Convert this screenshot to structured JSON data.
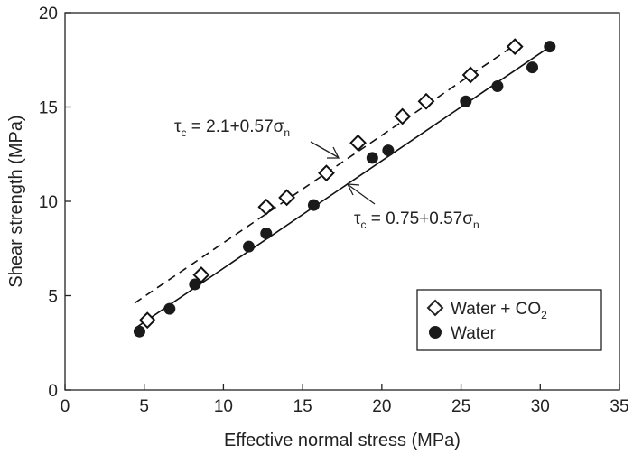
{
  "chart_data": {
    "type": "scatter",
    "title": "",
    "xlabel": "Effective normal stress (MPa)",
    "ylabel": "Shear strength (MPa)",
    "xlim": [
      0,
      35
    ],
    "ylim": [
      0,
      20
    ],
    "xticks": [
      "0",
      "5",
      "10",
      "15",
      "20",
      "25",
      "30",
      "35"
    ],
    "yticks": [
      "0",
      "5",
      "10",
      "15",
      "20"
    ],
    "grid": false,
    "legend_position": "bottom-right",
    "series": [
      {
        "name_prefix": "Water + CO",
        "name_subscript": "2",
        "marker": "open-diamond",
        "color": "#000000",
        "x": [
          5.2,
          8.6,
          12.7,
          14.0,
          16.5,
          18.5,
          21.3,
          22.8,
          25.6,
          28.4
        ],
        "y": [
          3.7,
          6.1,
          9.7,
          10.2,
          11.5,
          13.1,
          14.5,
          15.3,
          16.7,
          18.2
        ]
      },
      {
        "name": "Water",
        "marker": "filled-circle",
        "color": "#000000",
        "x": [
          4.7,
          6.6,
          8.2,
          11.6,
          12.7,
          15.7,
          19.4,
          20.4,
          25.3,
          27.3,
          29.5,
          30.6
        ],
        "y": [
          3.1,
          4.3,
          5.6,
          7.6,
          8.3,
          9.8,
          12.3,
          12.7,
          15.3,
          16.1,
          17.1,
          18.2
        ]
      }
    ],
    "fit_lines": [
      {
        "series": "Water + CO2",
        "style": "dashed",
        "intercept": 2.1,
        "slope": 0.57,
        "x_range": [
          4.4,
          28.4
        ],
        "label_main": "τ",
        "label_sub": "c",
        "label_eq": " = 2.1+0.57σ",
        "label_eq_sub": "n"
      },
      {
        "series": "Water",
        "style": "solid",
        "intercept": 0.75,
        "slope": 0.57,
        "x_range": [
          4.4,
          30.6
        ],
        "label_main": "τ",
        "label_sub": "c",
        "label_eq": " = 0.75+0.57σ",
        "label_eq_sub": "n"
      }
    ]
  }
}
